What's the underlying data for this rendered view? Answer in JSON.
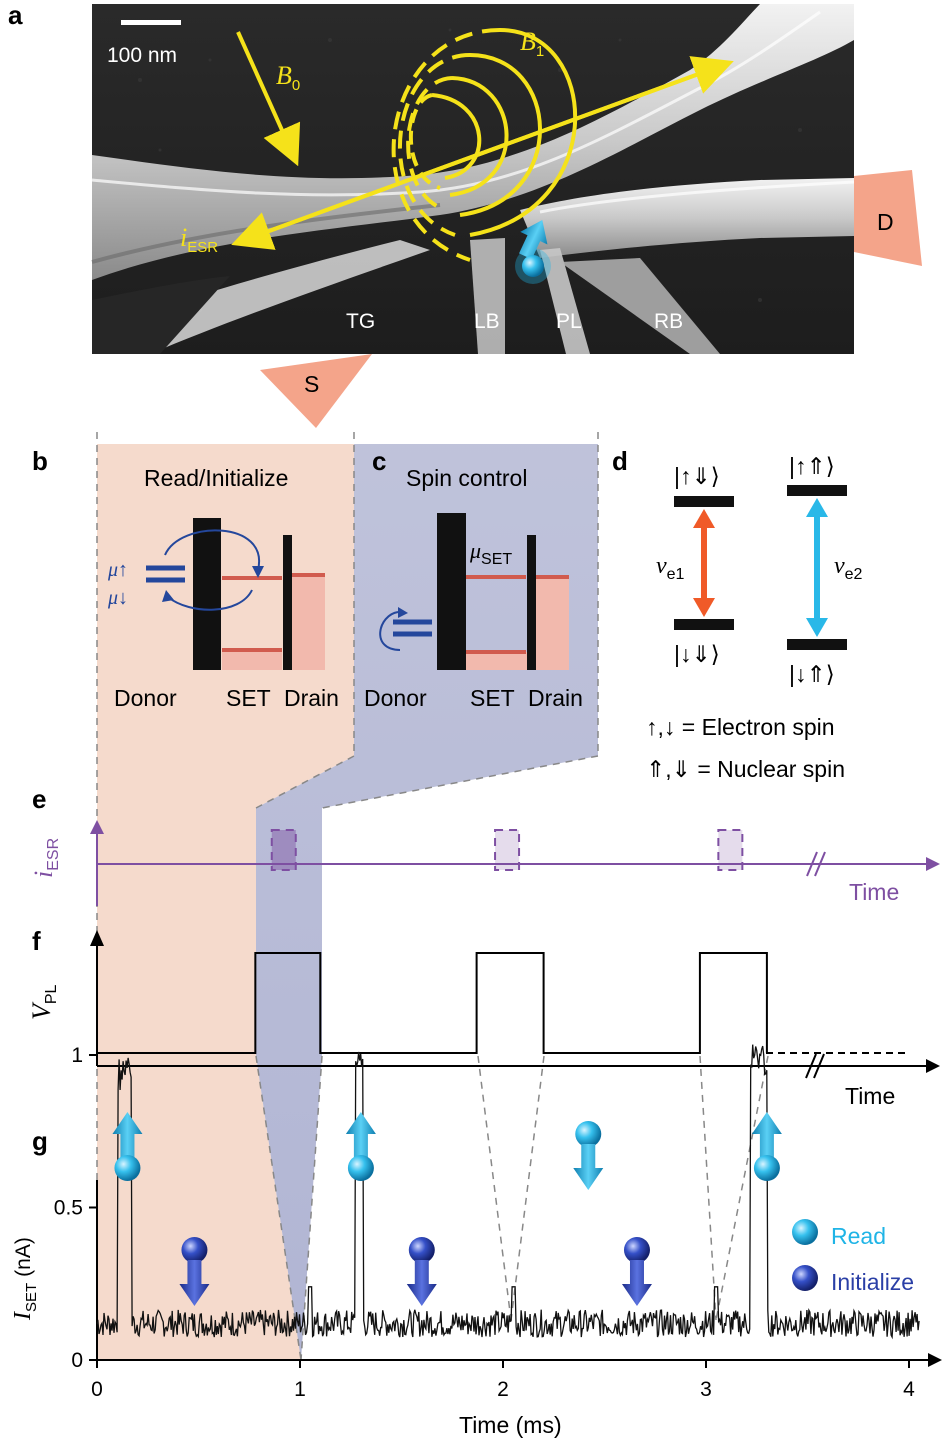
{
  "panels": {
    "a": {
      "letter": "a",
      "scale_bar": "100 nm",
      "b0_main": "B",
      "b0_sub": "0",
      "b1_main": "B",
      "b1_sub": "1",
      "iesr_main": "i",
      "iesr_sub": "ESR",
      "gates": [
        "TG",
        "LB",
        "PL",
        "RB"
      ],
      "source": "S",
      "drain": "D"
    },
    "b": {
      "letter": "b",
      "title": "Read/Initialize",
      "mu_up": "μ↑",
      "mu_down": "μ↓",
      "labels": [
        "Donor",
        "SET",
        "Drain"
      ]
    },
    "c": {
      "letter": "c",
      "title": "Spin control",
      "mu_set_main": "μ",
      "mu_set_sub": "SET",
      "labels": [
        "Donor",
        "SET",
        "Drain"
      ]
    },
    "d": {
      "letter": "d",
      "ket_top_left": "|↑⇓⟩",
      "ket_bottom_left": "|↓⇓⟩",
      "ket_top_right": "|↑⇑⟩",
      "ket_bottom_right": "|↓⇑⟩",
      "nu1_main": "ν",
      "nu1_sub": "e1",
      "nu2_main": "ν",
      "nu2_sub": "e2",
      "legend_electron": "↑,↓ = Electron spin",
      "legend_nuclear": "⇑,⇓ = Nuclear spin",
      "color_nu1": "#f05a28",
      "color_nu2": "#29b8e8"
    },
    "e": {
      "letter": "e",
      "ylabel_main": "i",
      "ylabel_sub": "ESR",
      "xlabel": "Time",
      "color": "#7e4fa2"
    },
    "f": {
      "letter": "f",
      "ylabel_main": "V",
      "ylabel_sub": "PL",
      "xlabel": "Time"
    },
    "g": {
      "letter": "g",
      "ylabel_main": "I",
      "ylabel_sub": "SET",
      "ylabel_unit": "(nA)",
      "xlabel": "Time (ms)",
      "legend_read": "Read",
      "legend_initialize": "Initialize",
      "color_read": "#1fb4e6",
      "color_initialize": "#2a3fa6"
    }
  },
  "chart_data": {
    "type": "line",
    "xlabel": "Time (ms)",
    "ylabel": "I_SET (nA)",
    "xlim": [
      0,
      4.1
    ],
    "ylim": [
      0,
      1.1
    ],
    "xticks": [
      "0",
      "1",
      "2",
      "3",
      "4"
    ],
    "yticks": [
      "0",
      "0.5",
      "1"
    ],
    "pulses_ms": [
      [
        0.1,
        0.17
      ],
      [
        1.27,
        1.31
      ],
      [
        3.22,
        3.3
      ]
    ],
    "pulse_heights_nA": [
      1.0,
      1.05,
      1.05
    ],
    "baseline_nA": 0.12,
    "vpl_high_ms": [
      [
        0.78,
        1.1
      ],
      [
        1.87,
        2.2
      ],
      [
        2.97,
        3.3
      ]
    ],
    "esr_pulse_ms": [
      0.92,
      2.02,
      3.12
    ],
    "spin_markers": [
      {
        "t": 0.15,
        "state": "up",
        "kind": "read"
      },
      {
        "t": 0.48,
        "state": "down",
        "kind": "initialize"
      },
      {
        "t": 1.3,
        "state": "up",
        "kind": "read"
      },
      {
        "t": 1.6,
        "state": "down",
        "kind": "initialize"
      },
      {
        "t": 2.42,
        "state": "down",
        "kind": "read"
      },
      {
        "t": 2.66,
        "state": "down",
        "kind": "initialize"
      },
      {
        "t": 3.3,
        "state": "up",
        "kind": "read"
      }
    ]
  }
}
